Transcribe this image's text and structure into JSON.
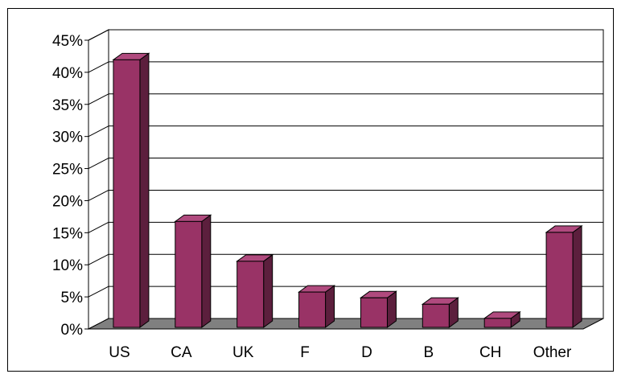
{
  "chart_data": {
    "type": "bar",
    "style": "3d-column",
    "categories": [
      "US",
      "CA",
      "UK",
      "F",
      "D",
      "B",
      "CH",
      "Other"
    ],
    "values": [
      41.7,
      16.5,
      10.3,
      5.5,
      4.6,
      3.6,
      1.4,
      14.8
    ],
    "ylim": [
      0,
      45
    ],
    "yticks": [
      "0%",
      "5%",
      "10%",
      "15%",
      "20%",
      "25%",
      "30%",
      "35%",
      "40%",
      "45%"
    ],
    "title": "",
    "xlabel": "",
    "ylabel": "",
    "grid": true,
    "legend": "none",
    "colors": {
      "bar_front": "#993366",
      "bar_side": "#5c1f3d",
      "bar_top": "#b04a7e",
      "floor": "#808080",
      "gridline": "#000000",
      "background": "#ffffff"
    }
  }
}
